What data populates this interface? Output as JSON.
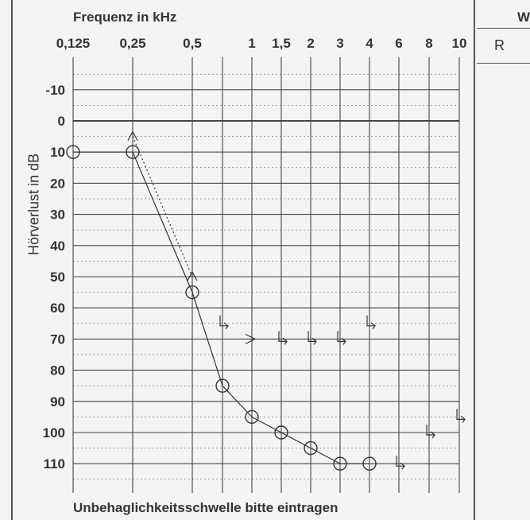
{
  "header": {
    "title": "Frequenz in kHz"
  },
  "footer": {
    "text": "Unbehaglichkeitsschwelle bitte eintragen"
  },
  "side_table": {
    "header": "W",
    "row_label": "R"
  },
  "chart_data": {
    "type": "line",
    "title": "Frequenz in kHz",
    "xlabel": "Frequenz in kHz",
    "ylabel": "Hörverlust in dB",
    "x_ticks": [
      "0,125",
      "0,25",
      "0,5",
      "1",
      "1,5",
      "2",
      "3",
      "4",
      "6",
      "8",
      "10"
    ],
    "y_ticks": [
      "-10",
      "0",
      "10",
      "20",
      "30",
      "40",
      "50",
      "60",
      "70",
      "80",
      "90",
      "100",
      "110"
    ],
    "xlim": [
      0.125,
      10
    ],
    "ylim": [
      -15,
      115
    ],
    "xscale": "log",
    "y_inverted": true,
    "grid": true,
    "series": [
      {
        "marker": "circle",
        "line": "solid",
        "x": [
          0.125,
          0.25,
          0.5,
          0.75,
          1,
          1.5,
          2,
          3,
          4
        ],
        "y": [
          10,
          10,
          55,
          85,
          95,
          100,
          105,
          110,
          110
        ]
      },
      {
        "marker": "caret",
        "line": "dotted",
        "x": [
          0.25,
          0.5
        ],
        "y": [
          5,
          50
        ]
      },
      {
        "marker": "bone-conduction",
        "line": "none",
        "x": [
          0.75,
          1,
          1.5,
          2,
          3,
          4,
          6,
          8,
          10
        ],
        "y": [
          65,
          70,
          70,
          70,
          70,
          65,
          110,
          100,
          95
        ]
      }
    ]
  }
}
